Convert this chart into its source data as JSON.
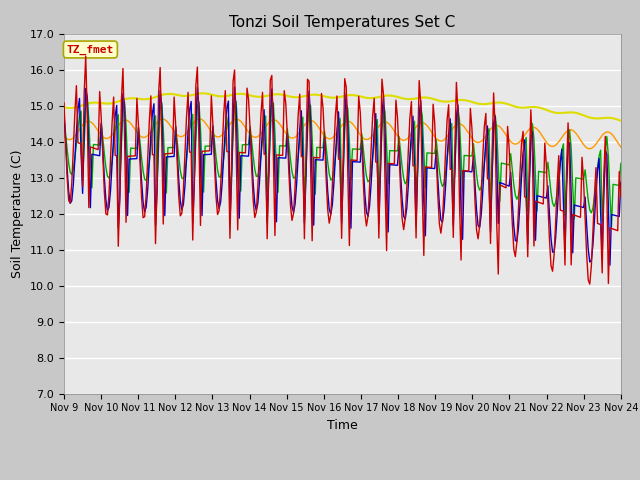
{
  "title": "Tonzi Soil Temperatures Set C",
  "xlabel": "Time",
  "ylabel": "Soil Temperature (C)",
  "ylim": [
    7.0,
    17.0
  ],
  "yticks": [
    7.0,
    8.0,
    9.0,
    10.0,
    11.0,
    12.0,
    13.0,
    14.0,
    15.0,
    16.0,
    17.0
  ],
  "plot_bg_color": "#e8e8e8",
  "fig_bg_color": "#c8c8c8",
  "series_colors": {
    "-2cm": "#cc0000",
    "-4cm": "#0000cc",
    "-8cm": "#00aa00",
    "-16cm": "#ff9900",
    "-32cm": "#dddd00"
  },
  "annotation_label": "TZ_fmet",
  "annotation_color": "#cc0000",
  "annotation_bg": "#ffffcc",
  "annotation_border": "#aaa800"
}
